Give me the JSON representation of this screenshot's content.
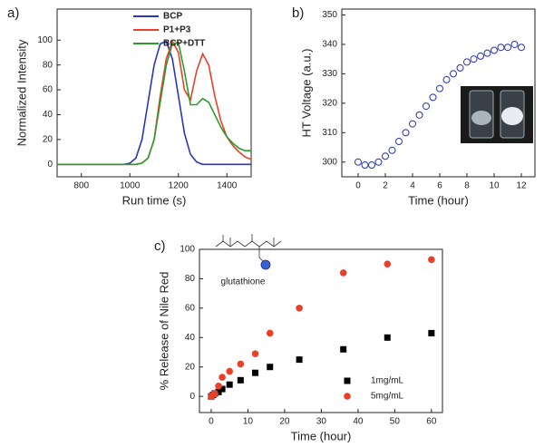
{
  "chart_data": [
    {
      "type": "line",
      "panel_label": "a)",
      "x_label": "Run time (s)",
      "y_label": "Normalized Intensity",
      "xlim": [
        700,
        1500
      ],
      "xticks": [
        800,
        1000,
        1200,
        1400
      ],
      "ylim": [
        -10,
        125
      ],
      "yticks": [
        0,
        20,
        40,
        60,
        80,
        100
      ],
      "legend": "upper right",
      "x": [
        700,
        725,
        750,
        775,
        800,
        825,
        850,
        875,
        900,
        925,
        950,
        975,
        1000,
        1025,
        1050,
        1075,
        1100,
        1125,
        1150,
        1175,
        1200,
        1225,
        1250,
        1275,
        1300,
        1325,
        1350,
        1375,
        1400,
        1425,
        1450,
        1475,
        1500
      ],
      "series": [
        {
          "name": "BCP",
          "color": "#2b36b8",
          "values": [
            0,
            0,
            0,
            0,
            0,
            0,
            0,
            0,
            0,
            0,
            0,
            0,
            1,
            5,
            20,
            50,
            80,
            97,
            99,
            85,
            55,
            25,
            8,
            2,
            0,
            0,
            0,
            0,
            0,
            0,
            0,
            0,
            0
          ]
        },
        {
          "name": "P1+P3",
          "color": "#e8412a",
          "values": [
            0,
            0,
            0,
            0,
            0,
            0,
            0,
            0,
            0,
            0,
            0,
            0,
            0,
            0,
            1,
            5,
            20,
            55,
            85,
            99,
            90,
            60,
            52,
            75,
            89,
            80,
            55,
            35,
            22,
            15,
            10,
            6,
            4
          ]
        },
        {
          "name": "BCP+DTT",
          "color": "#2e9b2e",
          "values": [
            0,
            0,
            0,
            0,
            0,
            0,
            0,
            0,
            0,
            0,
            0,
            0,
            0,
            0,
            1,
            5,
            20,
            50,
            80,
            97,
            98,
            75,
            48,
            48,
            53,
            50,
            40,
            30,
            22,
            17,
            13,
            11,
            11
          ]
        }
      ]
    },
    {
      "type": "scatter",
      "panel_label": "b)",
      "x_label": "Time (hour)",
      "y_label": "HT Voltage (a.u.)",
      "xlim": [
        -1.2,
        13
      ],
      "xticks": [
        0,
        2,
        4,
        6,
        8,
        10,
        12
      ],
      "ylim": [
        295,
        352
      ],
      "yticks": [
        300,
        310,
        320,
        330,
        340,
        350
      ],
      "series": [
        {
          "color": "#2632b0",
          "marker": "open-circle",
          "x": [
            0,
            0.5,
            1,
            1.5,
            2,
            2.5,
            3,
            3.5,
            4,
            4.5,
            5,
            5.5,
            6,
            6.5,
            7,
            7.5,
            8,
            8.5,
            9,
            9.5,
            10,
            10.5,
            11,
            11.5,
            12
          ],
          "values": [
            300,
            299,
            299,
            300,
            302,
            304,
            307,
            310,
            313,
            316,
            319,
            322,
            325,
            328,
            330,
            332,
            334,
            335,
            336,
            337,
            338,
            339,
            339,
            340,
            339
          ]
        }
      ]
    },
    {
      "type": "scatter",
      "panel_label": "c)",
      "x_label": "Time (hour)",
      "y_label": "% Release of Nile Red",
      "annotation": "glutathione",
      "xlim": [
        -3.2,
        63
      ],
      "xticks": [
        0,
        10,
        20,
        30,
        40,
        50,
        60
      ],
      "ylim": [
        -11,
        100
      ],
      "yticks": [
        0,
        20,
        40,
        60,
        80,
        100
      ],
      "legend": "lower right",
      "series": [
        {
          "name": "1mg/mL",
          "color": "#000000",
          "marker": "square",
          "x": [
            0,
            0.5,
            1,
            2,
            3,
            5,
            8,
            12,
            16,
            24,
            36,
            48,
            60
          ],
          "values": [
            0,
            1,
            2,
            3,
            5,
            8,
            11,
            16,
            20,
            25,
            32,
            40,
            43
          ]
        },
        {
          "name": "5mg/mL",
          "color": "#e8412a",
          "marker": "circle",
          "x": [
            0,
            0.5,
            1,
            2,
            3,
            5,
            8,
            12,
            16,
            24,
            36,
            48,
            60
          ],
          "values": [
            0,
            1,
            2,
            7,
            13,
            17,
            22,
            29,
            43,
            60,
            84,
            90,
            93
          ]
        }
      ]
    }
  ]
}
